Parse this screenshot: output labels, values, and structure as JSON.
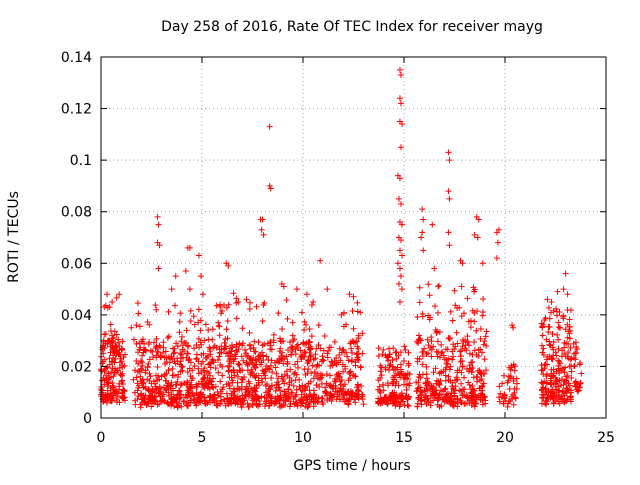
{
  "chart_data": {
    "type": "scatter",
    "title": "Day 258 of 2016, Rate Of TEC Index for receiver mayg",
    "xlabel": "GPS time / hours",
    "ylabel": "ROTI / TECUs",
    "xlim": [
      0,
      25
    ],
    "ylim": [
      0,
      0.14
    ],
    "xticks": [
      0,
      5,
      10,
      15,
      20,
      25
    ],
    "xtick_labels": [
      "0",
      "5",
      "10",
      "15",
      "20",
      "25"
    ],
    "yticks": [
      0,
      0.02,
      0.04,
      0.06,
      0.08,
      0.1,
      0.12,
      0.14
    ],
    "ytick_labels": [
      "0",
      "0.02",
      "0.04",
      "0.06",
      "0.08",
      "0.1",
      "0.12",
      "0.14"
    ],
    "grid": true,
    "marker": "plus",
    "series": [
      {
        "name": "ROTI",
        "color": "#ff0000",
        "clusters": [
          {
            "x": [
              0.0,
              1.2
            ],
            "base": [
              0.005,
              0.03
            ],
            "n": 160
          },
          {
            "x": [
              0.0,
              0.9
            ],
            "base": [
              0.025,
              0.045
            ],
            "n": 25
          },
          {
            "x": [
              1.6,
              11.0
            ],
            "base": [
              0.004,
              0.028
            ],
            "n": 900
          },
          {
            "x": [
              1.6,
              11.0
            ],
            "base": [
              0.02,
              0.045
            ],
            "n": 150
          },
          {
            "x": [
              11.0,
              12.8
            ],
            "base": [
              0.006,
              0.028
            ],
            "n": 140
          },
          {
            "x": [
              12.0,
              13.0
            ],
            "base": [
              0.005,
              0.045
            ],
            "n": 40
          },
          {
            "x": [
              13.7,
              15.3
            ],
            "base": [
              0.004,
              0.025
            ],
            "n": 160
          },
          {
            "x": [
              15.6,
              19.1
            ],
            "base": [
              0.004,
              0.03
            ],
            "n": 320
          },
          {
            "x": [
              15.6,
              19.1
            ],
            "base": [
              0.025,
              0.05
            ],
            "n": 60
          },
          {
            "x": [
              19.7,
              20.6
            ],
            "base": [
              0.004,
              0.02
            ],
            "n": 45
          },
          {
            "x": [
              21.8,
              23.3
            ],
            "base": [
              0.005,
              0.04
            ],
            "n": 220
          },
          {
            "x": [
              23.4,
              23.8
            ],
            "base": [
              0.01,
              0.028
            ],
            "n": 30
          }
        ],
        "points": [
          [
            0.3,
            0.048
          ],
          [
            0.55,
            0.045
          ],
          [
            0.9,
            0.048
          ],
          [
            1.5,
            0.035
          ],
          [
            1.75,
            0.036
          ],
          [
            2.8,
            0.078
          ],
          [
            2.85,
            0.075
          ],
          [
            2.8,
            0.068
          ],
          [
            2.9,
            0.067
          ],
          [
            2.85,
            0.058
          ],
          [
            3.5,
            0.05
          ],
          [
            3.7,
            0.055
          ],
          [
            4.2,
            0.057
          ],
          [
            4.4,
            0.05
          ],
          [
            4.3,
            0.066
          ],
          [
            4.4,
            0.066
          ],
          [
            4.85,
            0.063
          ],
          [
            4.95,
            0.055
          ],
          [
            5.05,
            0.048
          ],
          [
            6.2,
            0.06
          ],
          [
            6.3,
            0.059
          ],
          [
            6.8,
            0.045
          ],
          [
            7.2,
            0.046
          ],
          [
            7.9,
            0.077
          ],
          [
            8.0,
            0.077
          ],
          [
            7.95,
            0.073
          ],
          [
            8.05,
            0.071
          ],
          [
            8.35,
            0.09
          ],
          [
            8.4,
            0.089
          ],
          [
            8.35,
            0.113
          ],
          [
            8.95,
            0.052
          ],
          [
            9.05,
            0.051
          ],
          [
            9.7,
            0.05
          ],
          [
            10.2,
            0.048
          ],
          [
            10.5,
            0.045
          ],
          [
            10.85,
            0.061
          ],
          [
            11.2,
            0.05
          ],
          [
            11.9,
            0.04
          ],
          [
            12.3,
            0.048
          ],
          [
            12.5,
            0.047
          ],
          [
            14.8,
            0.135
          ],
          [
            14.85,
            0.133
          ],
          [
            14.8,
            0.124
          ],
          [
            14.85,
            0.122
          ],
          [
            14.8,
            0.115
          ],
          [
            14.9,
            0.114
          ],
          [
            14.85,
            0.105
          ],
          [
            14.7,
            0.094
          ],
          [
            14.8,
            0.093
          ],
          [
            14.75,
            0.085
          ],
          [
            14.85,
            0.083
          ],
          [
            14.8,
            0.076
          ],
          [
            14.9,
            0.075
          ],
          [
            14.75,
            0.07
          ],
          [
            14.85,
            0.069
          ],
          [
            14.8,
            0.065
          ],
          [
            14.9,
            0.063
          ],
          [
            14.7,
            0.06
          ],
          [
            14.8,
            0.058
          ],
          [
            14.85,
            0.055
          ],
          [
            14.75,
            0.052
          ],
          [
            14.9,
            0.05
          ],
          [
            14.8,
            0.045
          ],
          [
            15.9,
            0.081
          ],
          [
            15.95,
            0.077
          ],
          [
            15.9,
            0.072
          ],
          [
            15.85,
            0.07
          ],
          [
            15.95,
            0.065
          ],
          [
            16.4,
            0.075
          ],
          [
            16.5,
            0.058
          ],
          [
            17.2,
            0.103
          ],
          [
            17.25,
            0.1
          ],
          [
            17.2,
            0.088
          ],
          [
            17.25,
            0.085
          ],
          [
            17.2,
            0.072
          ],
          [
            17.25,
            0.067
          ],
          [
            17.8,
            0.061
          ],
          [
            17.9,
            0.06
          ],
          [
            17.85,
            0.051
          ],
          [
            18.6,
            0.078
          ],
          [
            18.7,
            0.077
          ],
          [
            18.5,
            0.071
          ],
          [
            18.65,
            0.07
          ],
          [
            18.9,
            0.06
          ],
          [
            19.6,
            0.072
          ],
          [
            19.7,
            0.073
          ],
          [
            19.65,
            0.068
          ],
          [
            19.6,
            0.062
          ],
          [
            20.35,
            0.036
          ],
          [
            20.4,
            0.035
          ],
          [
            22.1,
            0.046
          ],
          [
            22.3,
            0.045
          ],
          [
            22.6,
            0.049
          ],
          [
            22.9,
            0.05
          ],
          [
            23.0,
            0.056
          ],
          [
            23.1,
            0.048
          ]
        ]
      }
    ]
  }
}
